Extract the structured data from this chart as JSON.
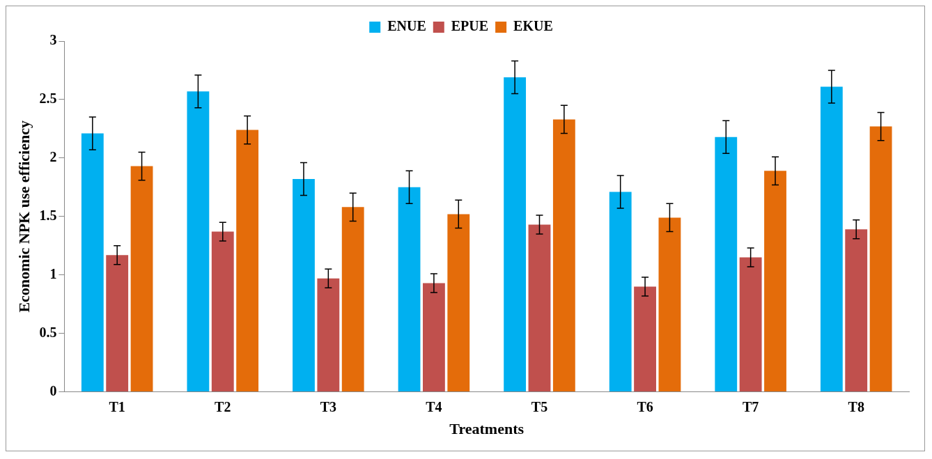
{
  "chart_data": {
    "type": "bar",
    "xlabel": "Treatments",
    "ylabel": "Economic NPK use efficiency",
    "categories": [
      "T1",
      "T2",
      "T3",
      "T4",
      "T5",
      "T6",
      "T7",
      "T8"
    ],
    "series": [
      {
        "name": "ENUE",
        "color": "#00b0f0",
        "values": [
          2.21,
          2.57,
          1.82,
          1.75,
          2.69,
          1.71,
          2.18,
          2.61
        ],
        "errors": [
          0.14,
          0.14,
          0.14,
          0.14,
          0.14,
          0.14,
          0.14,
          0.14
        ]
      },
      {
        "name": "EPUE",
        "color": "#c0504d",
        "values": [
          1.17,
          1.37,
          0.97,
          0.93,
          1.43,
          0.9,
          1.15,
          1.39
        ],
        "errors": [
          0.08,
          0.08,
          0.08,
          0.08,
          0.08,
          0.08,
          0.08,
          0.08
        ]
      },
      {
        "name": "EKUE",
        "color": "#e46c0a",
        "values": [
          1.93,
          2.24,
          1.58,
          1.52,
          2.33,
          1.49,
          1.89,
          2.27
        ],
        "errors": [
          0.12,
          0.12,
          0.12,
          0.12,
          0.12,
          0.12,
          0.12,
          0.12
        ]
      }
    ],
    "ylim": [
      0,
      3
    ],
    "yticks": [
      0,
      0.5,
      1,
      1.5,
      2,
      2.5,
      3
    ],
    "grid": false,
    "legend": "top"
  }
}
